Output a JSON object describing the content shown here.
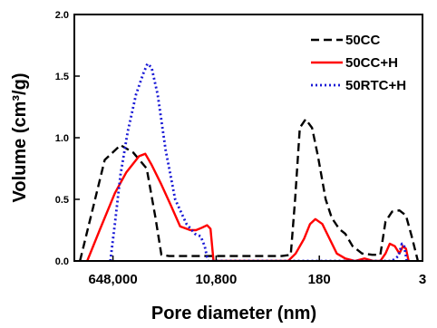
{
  "chart_data": {
    "type": "line",
    "xlabel": "Pore diameter (nm)",
    "ylabel": "Volume  (cm³/g)",
    "x_scale": "log",
    "x_direction": "decreasing",
    "xlim": [
      3000000,
      3
    ],
    "x_ticks": [
      648000,
      10800,
      180,
      3
    ],
    "x_tick_labels": [
      "648,000",
      "10,800",
      "180",
      "3"
    ],
    "ylim": [
      0,
      2.0
    ],
    "y_ticks": [
      0.0,
      0.5,
      1.0,
      1.5,
      2.0
    ],
    "y_tick_labels": [
      "0.0",
      "0.5",
      "1.0",
      "1.5",
      "2.0"
    ],
    "grid": false,
    "legend_position": "top-right",
    "series": [
      {
        "name": "50CC",
        "color": "#000000",
        "style": "dashed",
        "points": [
          [
            2400000,
            0.0
          ],
          [
            1400000,
            0.45
          ],
          [
            900000,
            0.82
          ],
          [
            480000,
            0.94
          ],
          [
            290000,
            0.88
          ],
          [
            170000,
            0.75
          ],
          [
            120000,
            0.35
          ],
          [
            95000,
            0.05
          ],
          [
            70000,
            0.04
          ],
          [
            30000,
            0.04
          ],
          [
            9000,
            0.04
          ],
          [
            2500,
            0.04
          ],
          [
            800,
            0.04
          ],
          [
            560,
            0.05
          ],
          [
            470,
            0.5
          ],
          [
            390,
            1.08
          ],
          [
            310,
            1.15
          ],
          [
            240,
            1.08
          ],
          [
            190,
            0.85
          ],
          [
            140,
            0.5
          ],
          [
            110,
            0.35
          ],
          [
            82,
            0.26
          ],
          [
            64,
            0.22
          ],
          [
            48,
            0.12
          ],
          [
            33,
            0.06
          ],
          [
            22,
            0.05
          ],
          [
            16,
            0.05
          ],
          [
            13,
            0.32
          ],
          [
            10,
            0.4
          ],
          [
            7.5,
            0.41
          ],
          [
            5.8,
            0.37
          ],
          [
            4.6,
            0.2
          ],
          [
            3.6,
            0.0
          ]
        ]
      },
      {
        "name": "50CC+H",
        "color": "#ff0000",
        "style": "solid",
        "points": [
          [
            1800000,
            0.0
          ],
          [
            1100000,
            0.25
          ],
          [
            600000,
            0.55
          ],
          [
            380000,
            0.72
          ],
          [
            230000,
            0.85
          ],
          [
            180000,
            0.87
          ],
          [
            140000,
            0.78
          ],
          [
            95000,
            0.62
          ],
          [
            65000,
            0.45
          ],
          [
            45000,
            0.28
          ],
          [
            30000,
            0.25
          ],
          [
            24000,
            0.25
          ],
          [
            19000,
            0.27
          ],
          [
            15500,
            0.29
          ],
          [
            13500,
            0.26
          ],
          [
            12000,
            0.0
          ],
          [
            9000,
            0.0
          ],
          [
            2000,
            0.0
          ],
          [
            620,
            0.0
          ],
          [
            460,
            0.06
          ],
          [
            330,
            0.18
          ],
          [
            260,
            0.3
          ],
          [
            210,
            0.34
          ],
          [
            160,
            0.3
          ],
          [
            120,
            0.18
          ],
          [
            90,
            0.06
          ],
          [
            64,
            0.02
          ],
          [
            44,
            0.0
          ],
          [
            30,
            0.02
          ],
          [
            21,
            0.0
          ],
          [
            16,
            0.0
          ],
          [
            13,
            0.06
          ],
          [
            11,
            0.14
          ],
          [
            9,
            0.12
          ],
          [
            7.5,
            0.06
          ],
          [
            6.5,
            0.12
          ],
          [
            5.8,
            0.1
          ],
          [
            5.2,
            0.0
          ]
        ]
      },
      {
        "name": "50RTC+H",
        "color": "#1a1ad6",
        "style": "dotted",
        "points": [
          [
            720000,
            0.0
          ],
          [
            600000,
            0.3
          ],
          [
            480000,
            0.7
          ],
          [
            360000,
            1.05
          ],
          [
            260000,
            1.35
          ],
          [
            195000,
            1.52
          ],
          [
            165000,
            1.6
          ],
          [
            140000,
            1.57
          ],
          [
            110000,
            1.35
          ],
          [
            80000,
            0.9
          ],
          [
            55000,
            0.5
          ],
          [
            35000,
            0.3
          ],
          [
            25000,
            0.22
          ],
          [
            20000,
            0.2
          ],
          [
            17000,
            0.12
          ],
          [
            15000,
            0.0
          ],
          [
            10000,
            0.0
          ],
          [
            3000,
            0.0
          ],
          [
            1500,
            0.0
          ],
          [
            1000,
            0.0
          ],
          [
            400,
            0.0
          ],
          [
            100,
            0.0
          ],
          [
            30,
            0.0
          ],
          [
            10,
            0.0
          ],
          [
            7.8,
            0.04
          ],
          [
            6.8,
            0.14
          ],
          [
            6.2,
            0.12
          ],
          [
            5.6,
            0.0
          ]
        ]
      }
    ]
  }
}
